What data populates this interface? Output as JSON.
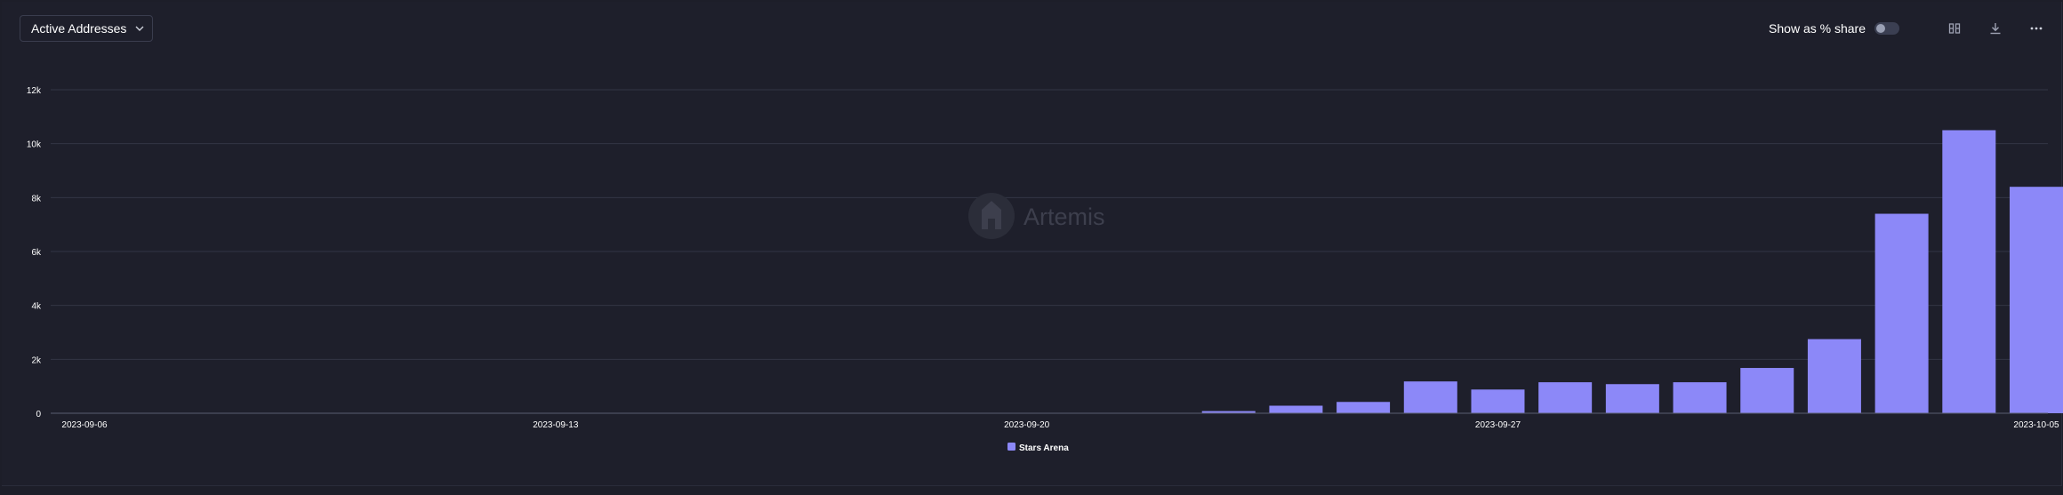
{
  "header": {
    "metric_label": "Active Addresses",
    "share_label": "Show as % share",
    "share_toggle_on": false
  },
  "icons": {
    "dropdown": "chevron-down-icon",
    "layout": "grid-icon",
    "download": "download-icon",
    "more": "more-horizontal-icon"
  },
  "watermark": "Artemis",
  "colors": {
    "bar": "#8c88f8",
    "background": "#1e1f2b",
    "grid": "#333645"
  },
  "chart_data": {
    "type": "bar",
    "x_start": "2023-09-06",
    "x_end": "2023-10-05",
    "ylim": [
      0,
      12000
    ],
    "yticks": [
      0,
      2000,
      4000,
      6000,
      8000,
      10000,
      12000
    ],
    "ytick_labels": [
      "0",
      "2k",
      "4k",
      "6k",
      "8k",
      "10k",
      "12k"
    ],
    "xtick_labels": [
      "2023-09-06",
      "2023-09-13",
      "2023-09-20",
      "2023-09-27",
      "2023-10-05"
    ],
    "grid": true,
    "legend_position": "bottom-center",
    "series": [
      {
        "name": "Stars Arena",
        "points": [
          {
            "date": "2023-09-23",
            "value": 80
          },
          {
            "date": "2023-09-24",
            "value": 280
          },
          {
            "date": "2023-09-25",
            "value": 420
          },
          {
            "date": "2023-09-26",
            "value": 1180
          },
          {
            "date": "2023-09-27",
            "value": 880
          },
          {
            "date": "2023-09-28",
            "value": 1150
          },
          {
            "date": "2023-09-29",
            "value": 1080
          },
          {
            "date": "2023-09-30",
            "value": 1150
          },
          {
            "date": "2023-10-01",
            "value": 1680
          },
          {
            "date": "2023-10-02",
            "value": 2750
          },
          {
            "date": "2023-10-03",
            "value": 7400
          },
          {
            "date": "2023-10-04",
            "value": 10500
          },
          {
            "date": "2023-10-05",
            "value": 8400
          }
        ]
      }
    ]
  }
}
